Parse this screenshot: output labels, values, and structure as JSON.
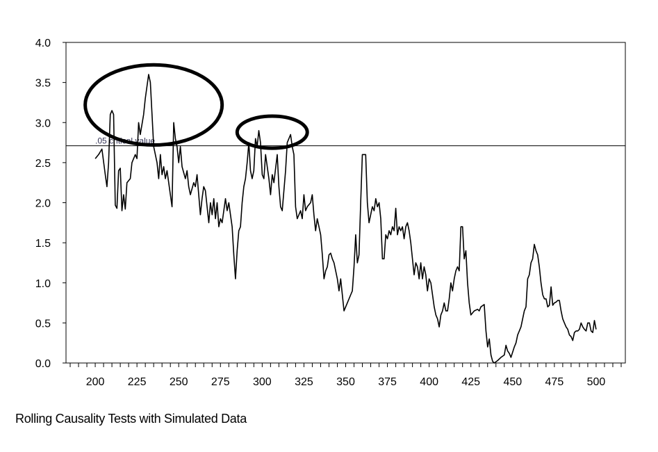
{
  "caption": "Rolling Causality Tests with Simulated Data",
  "chart_data": {
    "type": "line",
    "title": "",
    "xlabel": "",
    "ylabel": "",
    "xlim": [
      182.5,
      517.5
    ],
    "ylim": [
      0,
      4.0
    ],
    "grid": false,
    "x_ticks": [
      "200",
      "225",
      "250",
      "275",
      "300",
      "325",
      "350",
      "375",
      "400",
      "425",
      "450",
      "475",
      "500"
    ],
    "y_ticks": [
      "0.0",
      "0.5",
      "1.0",
      "1.5",
      "2.0",
      "2.5",
      "3.0",
      "3.5",
      "4.0"
    ],
    "reference_line": {
      "value": 2.71,
      "label": ".05 critical value"
    },
    "annotations": [
      {
        "shape": "ellipse",
        "x_range": [
          194,
          276
        ],
        "y_range": [
          2.72,
          3.72
        ]
      },
      {
        "shape": "ellipse",
        "x_range": [
          285,
          327
        ],
        "y_range": [
          2.68,
          3.08
        ]
      }
    ],
    "line_color": "#000000",
    "x": [
      200,
      202,
      204,
      206,
      207,
      208,
      209,
      210,
      211,
      212,
      213,
      214,
      215,
      216,
      217,
      218,
      219,
      221,
      222,
      224,
      225,
      226,
      227,
      229,
      230,
      232,
      233,
      235,
      237,
      238,
      239,
      240,
      241,
      242,
      243,
      245,
      246,
      247,
      248,
      249,
      250,
      251,
      252,
      254,
      255,
      256,
      257,
      259,
      260,
      261,
      262,
      263,
      264,
      265,
      266,
      268,
      269,
      270,
      271,
      272,
      273,
      274,
      275,
      276,
      278,
      279,
      280,
      282,
      283,
      284,
      285,
      286,
      287,
      288,
      289,
      290,
      291,
      292,
      293,
      294,
      295,
      296,
      297,
      298,
      299,
      300,
      301,
      302,
      303,
      304,
      305,
      306,
      307,
      309,
      310,
      311,
      312,
      314,
      315,
      316,
      317,
      318,
      319,
      320,
      321,
      322,
      323,
      324,
      325,
      326,
      327,
      329,
      330,
      331,
      332,
      333,
      335,
      336,
      337,
      338,
      339,
      340,
      341,
      342,
      343,
      344,
      345,
      346,
      347,
      348,
      349,
      350,
      351,
      353,
      354,
      355,
      356,
      357,
      358,
      359,
      360,
      361,
      362,
      363,
      364,
      365,
      366,
      367,
      368,
      369,
      370,
      371,
      372,
      373,
      374,
      375,
      376,
      377,
      378,
      379,
      380,
      381,
      382,
      383,
      384,
      385,
      386,
      387,
      388,
      389,
      390,
      391,
      392,
      393,
      394,
      395,
      396,
      397,
      398,
      399,
      400,
      401,
      402,
      403,
      404,
      405,
      406,
      407,
      408,
      409,
      410,
      411,
      412,
      413,
      414,
      415,
      416,
      417,
      418,
      419,
      420,
      421,
      422,
      423,
      424,
      425,
      427,
      429,
      430,
      431,
      433,
      434,
      435,
      436,
      437,
      438,
      439,
      441,
      443,
      445,
      446,
      447,
      448,
      449,
      451,
      452,
      453,
      454,
      455,
      456,
      457,
      458,
      459,
      460,
      461,
      462,
      463,
      464,
      465,
      466,
      467,
      468,
      469,
      470,
      471,
      472,
      473,
      474,
      475,
      476,
      477,
      478,
      479,
      480,
      481,
      482,
      483,
      484,
      485,
      486,
      487,
      488,
      489,
      490,
      491,
      492,
      493,
      494,
      495,
      496,
      497,
      498,
      499,
      500
    ],
    "y": [
      2.55,
      2.6,
      2.67,
      2.35,
      2.2,
      2.5,
      3.1,
      3.15,
      3.1,
      1.97,
      1.93,
      2.4,
      2.43,
      1.9,
      2.1,
      1.92,
      2.25,
      2.3,
      2.5,
      2.6,
      2.55,
      3.0,
      2.85,
      3.1,
      3.3,
      3.6,
      3.5,
      2.7,
      2.5,
      2.3,
      2.6,
      2.35,
      2.45,
      2.3,
      2.4,
      2.1,
      1.95,
      3.0,
      2.8,
      2.7,
      2.5,
      2.7,
      2.45,
      2.3,
      2.4,
      2.2,
      2.1,
      2.25,
      2.2,
      2.35,
      2.1,
      1.85,
      2.05,
      2.2,
      2.15,
      1.75,
      2.0,
      1.85,
      2.05,
      1.8,
      2.0,
      1.7,
      1.8,
      1.75,
      2.05,
      1.9,
      2.0,
      1.7,
      1.35,
      1.05,
      1.4,
      1.65,
      1.7,
      2.0,
      2.2,
      2.3,
      2.5,
      2.75,
      2.4,
      2.3,
      2.4,
      2.8,
      2.7,
      2.9,
      2.75,
      2.35,
      2.3,
      2.6,
      2.45,
      2.3,
      2.1,
      2.35,
      2.25,
      2.6,
      2.2,
      1.95,
      1.9,
      2.4,
      2.75,
      2.8,
      2.85,
      2.7,
      2.6,
      1.95,
      1.8,
      1.85,
      1.9,
      1.8,
      2.1,
      1.9,
      1.95,
      2.0,
      2.1,
      1.85,
      1.65,
      1.8,
      1.6,
      1.35,
      1.05,
      1.15,
      1.2,
      1.35,
      1.37,
      1.3,
      1.25,
      1.15,
      1.05,
      0.9,
      1.05,
      0.85,
      0.65,
      0.7,
      0.75,
      0.85,
      0.9,
      1.2,
      1.6,
      1.25,
      1.35,
      2.0,
      2.6,
      2.6,
      2.6,
      2.0,
      1.75,
      1.85,
      1.95,
      1.9,
      2.05,
      1.95,
      2.0,
      1.8,
      1.3,
      1.3,
      1.6,
      1.55,
      1.65,
      1.6,
      1.7,
      1.65,
      1.93,
      1.6,
      1.7,
      1.65,
      1.7,
      1.55,
      1.7,
      1.75,
      1.65,
      1.5,
      1.3,
      1.1,
      1.25,
      1.2,
      1.05,
      1.25,
      1.05,
      1.2,
      1.1,
      0.9,
      1.05,
      1.0,
      0.85,
      0.7,
      0.6,
      0.55,
      0.45,
      0.6,
      0.65,
      0.75,
      0.65,
      0.65,
      0.8,
      1.0,
      0.9,
      1.05,
      1.15,
      1.2,
      1.15,
      1.7,
      1.7,
      1.3,
      1.4,
      1.0,
      0.75,
      0.6,
      0.65,
      0.67,
      0.65,
      0.7,
      0.73,
      0.4,
      0.2,
      0.3,
      0.1,
      0.02,
      0.0,
      0.03,
      0.07,
      0.1,
      0.22,
      0.15,
      0.12,
      0.07,
      0.2,
      0.25,
      0.35,
      0.4,
      0.45,
      0.55,
      0.65,
      0.7,
      1.05,
      1.1,
      1.25,
      1.3,
      1.48,
      1.4,
      1.35,
      1.2,
      1.0,
      0.85,
      0.8,
      0.8,
      0.7,
      0.72,
      0.95,
      0.72,
      0.75,
      0.76,
      0.78,
      0.78,
      0.65,
      0.55,
      0.5,
      0.45,
      0.42,
      0.35,
      0.33,
      0.28,
      0.38,
      0.4,
      0.4,
      0.42,
      0.5,
      0.45,
      0.42,
      0.4,
      0.5,
      0.5,
      0.4,
      0.38,
      0.53,
      0.42
    ]
  }
}
